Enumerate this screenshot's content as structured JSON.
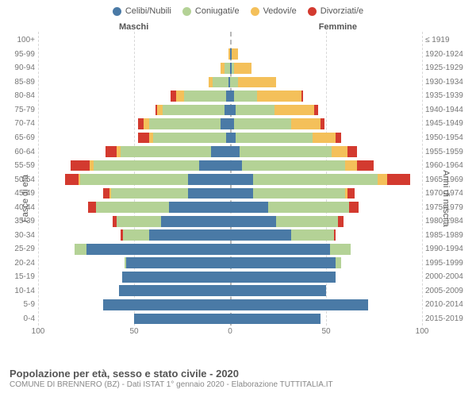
{
  "legend": [
    {
      "label": "Celibi/Nubili",
      "color": "#4a7aa6"
    },
    {
      "label": "Coniugati/e",
      "color": "#b4d296"
    },
    {
      "label": "Vedovi/e",
      "color": "#f4c05a"
    },
    {
      "label": "Divorziati/e",
      "color": "#d33a2f"
    }
  ],
  "gender_labels": {
    "m": "Maschi",
    "f": "Femmine"
  },
  "axis_titles": {
    "left": "Fasce di età",
    "right": "Anni di nascita"
  },
  "title": "Popolazione per età, sesso e stato civile - 2020",
  "subtitle": "COMUNE DI BRENNERO (BZ) - Dati ISTAT 1° gennaio 2020 - Elaborazione TUTTITALIA.IT",
  "x_max": 100,
  "x_ticks": [
    100,
    50,
    0,
    50,
    100
  ],
  "colors": {
    "celibi": "#4a7aa6",
    "coniugati": "#b4d296",
    "vedovi": "#f4c05a",
    "divorziati": "#d33a2f",
    "grid": "#d8d8d8",
    "grid_center": "#b8b8b8",
    "bg": "#ffffff"
  },
  "age_bands": [
    {
      "age": "100+",
      "birth": "≤ 1919",
      "m": {
        "c": 0,
        "g": 0,
        "v": 0,
        "d": 0
      },
      "f": {
        "c": 0,
        "g": 0,
        "v": 0,
        "d": 0
      }
    },
    {
      "age": "95-99",
      "birth": "1920-1924",
      "m": {
        "c": 0,
        "g": 0,
        "v": 1,
        "d": 0
      },
      "f": {
        "c": 1,
        "g": 0,
        "v": 3,
        "d": 0
      }
    },
    {
      "age": "90-94",
      "birth": "1925-1929",
      "m": {
        "c": 0,
        "g": 3,
        "v": 2,
        "d": 0
      },
      "f": {
        "c": 1,
        "g": 1,
        "v": 9,
        "d": 0
      }
    },
    {
      "age": "85-89",
      "birth": "1930-1934",
      "m": {
        "c": 1,
        "g": 8,
        "v": 2,
        "d": 0
      },
      "f": {
        "c": 0,
        "g": 4,
        "v": 20,
        "d": 0
      }
    },
    {
      "age": "80-84",
      "birth": "1935-1939",
      "m": {
        "c": 2,
        "g": 22,
        "v": 4,
        "d": 3
      },
      "f": {
        "c": 2,
        "g": 12,
        "v": 23,
        "d": 1
      }
    },
    {
      "age": "75-79",
      "birth": "1940-1944",
      "m": {
        "c": 3,
        "g": 32,
        "v": 3,
        "d": 1
      },
      "f": {
        "c": 3,
        "g": 20,
        "v": 21,
        "d": 2
      }
    },
    {
      "age": "70-74",
      "birth": "1945-1949",
      "m": {
        "c": 5,
        "g": 37,
        "v": 3,
        "d": 3
      },
      "f": {
        "c": 2,
        "g": 30,
        "v": 15,
        "d": 2
      }
    },
    {
      "age": "65-69",
      "birth": "1950-1954",
      "m": {
        "c": 2,
        "g": 38,
        "v": 2,
        "d": 6
      },
      "f": {
        "c": 3,
        "g": 40,
        "v": 12,
        "d": 3
      }
    },
    {
      "age": "60-64",
      "birth": "1955-1959",
      "m": {
        "c": 10,
        "g": 47,
        "v": 2,
        "d": 6
      },
      "f": {
        "c": 5,
        "g": 48,
        "v": 8,
        "d": 5
      }
    },
    {
      "age": "55-59",
      "birth": "1960-1964",
      "m": {
        "c": 16,
        "g": 55,
        "v": 2,
        "d": 10
      },
      "f": {
        "c": 6,
        "g": 54,
        "v": 6,
        "d": 9
      }
    },
    {
      "age": "50-54",
      "birth": "1965-1969",
      "m": {
        "c": 22,
        "g": 56,
        "v": 1,
        "d": 7
      },
      "f": {
        "c": 12,
        "g": 65,
        "v": 5,
        "d": 12
      }
    },
    {
      "age": "45-49",
      "birth": "1970-1974",
      "m": {
        "c": 22,
        "g": 40,
        "v": 1,
        "d": 3
      },
      "f": {
        "c": 12,
        "g": 48,
        "v": 1,
        "d": 4
      }
    },
    {
      "age": "40-44",
      "birth": "1975-1979",
      "m": {
        "c": 32,
        "g": 38,
        "v": 0,
        "d": 4
      },
      "f": {
        "c": 20,
        "g": 42,
        "v": 0,
        "d": 5
      }
    },
    {
      "age": "35-39",
      "birth": "1980-1984",
      "m": {
        "c": 36,
        "g": 23,
        "v": 0,
        "d": 2
      },
      "f": {
        "c": 24,
        "g": 32,
        "v": 0,
        "d": 3
      }
    },
    {
      "age": "30-34",
      "birth": "1985-1989",
      "m": {
        "c": 42,
        "g": 14,
        "v": 0,
        "d": 1
      },
      "f": {
        "c": 32,
        "g": 22,
        "v": 0,
        "d": 1
      }
    },
    {
      "age": "25-29",
      "birth": "1990-1994",
      "m": {
        "c": 75,
        "g": 6,
        "v": 0,
        "d": 0
      },
      "f": {
        "c": 52,
        "g": 11,
        "v": 0,
        "d": 0
      }
    },
    {
      "age": "20-24",
      "birth": "1995-1999",
      "m": {
        "c": 54,
        "g": 1,
        "v": 0,
        "d": 0
      },
      "f": {
        "c": 55,
        "g": 3,
        "v": 0,
        "d": 0
      }
    },
    {
      "age": "15-19",
      "birth": "2000-2004",
      "m": {
        "c": 56,
        "g": 0,
        "v": 0,
        "d": 0
      },
      "f": {
        "c": 55,
        "g": 0,
        "v": 0,
        "d": 0
      }
    },
    {
      "age": "10-14",
      "birth": "2005-2009",
      "m": {
        "c": 58,
        "g": 0,
        "v": 0,
        "d": 0
      },
      "f": {
        "c": 50,
        "g": 0,
        "v": 0,
        "d": 0
      }
    },
    {
      "age": "5-9",
      "birth": "2010-2014",
      "m": {
        "c": 66,
        "g": 0,
        "v": 0,
        "d": 0
      },
      "f": {
        "c": 72,
        "g": 0,
        "v": 0,
        "d": 0
      }
    },
    {
      "age": "0-4",
      "birth": "2015-2019",
      "m": {
        "c": 50,
        "g": 0,
        "v": 0,
        "d": 0
      },
      "f": {
        "c": 47,
        "g": 0,
        "v": 0,
        "d": 0
      }
    }
  ]
}
